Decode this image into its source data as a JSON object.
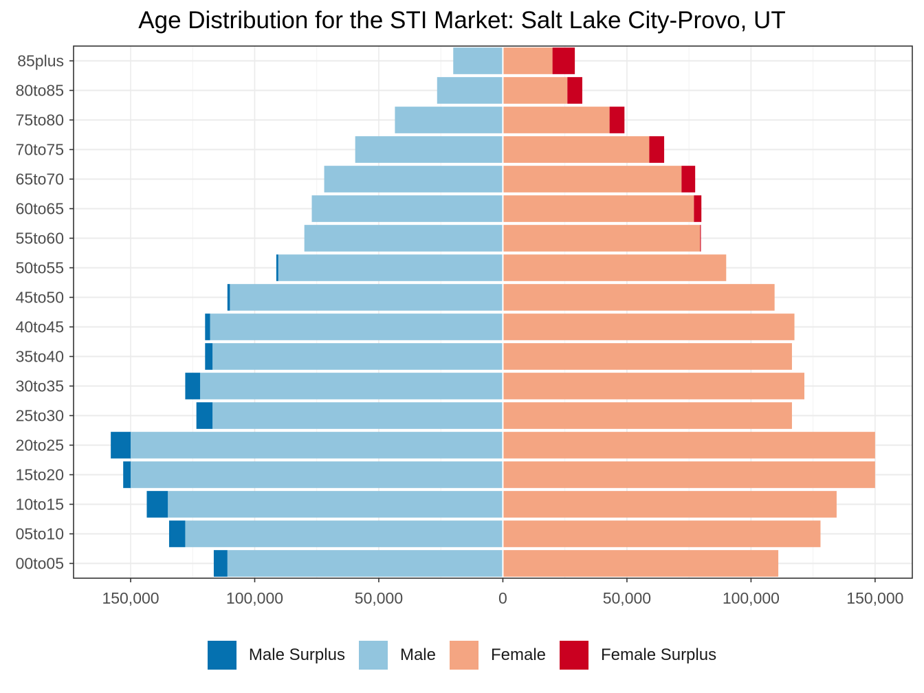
{
  "chart_data": {
    "type": "bar",
    "orientation": "horizontal",
    "title": "Age Distribution for the STI Market: Salt Lake City-Provo, UT",
    "xlabel": "",
    "ylabel": "",
    "categories": [
      "00to05",
      "05to10",
      "10to15",
      "15to20",
      "20to25",
      "25to30",
      "30to35",
      "35to40",
      "40to45",
      "45to50",
      "50to55",
      "55to60",
      "60to65",
      "65to70",
      "70to75",
      "75to80",
      "80to85",
      "85plus"
    ],
    "series": [
      {
        "name": "Male Surplus",
        "color": "#0571b0",
        "values": [
          5500,
          6500,
          8500,
          3000,
          8000,
          6500,
          6000,
          3000,
          2000,
          1000,
          800,
          0,
          0,
          0,
          0,
          0,
          0,
          0
        ]
      },
      {
        "name": "Male",
        "color": "#92c5de",
        "values": [
          111000,
          128000,
          135000,
          150000,
          150000,
          117000,
          122000,
          117000,
          118000,
          110000,
          90500,
          80000,
          77000,
          72000,
          59500,
          43500,
          26500,
          20000
        ]
      },
      {
        "name": "Female",
        "color": "#f4a582",
        "values": [
          111000,
          128000,
          134500,
          150000,
          150000,
          116500,
          121500,
          116500,
          117500,
          109500,
          90000,
          79500,
          77000,
          72000,
          59000,
          43000,
          26000,
          20000
        ]
      },
      {
        "name": "Female Surplus",
        "color": "#ca0020",
        "values": [
          0,
          0,
          0,
          0,
          0,
          0,
          0,
          0,
          0,
          0,
          0,
          300,
          3000,
          5500,
          6000,
          6000,
          6000,
          9000
        ]
      }
    ],
    "xlim": [
      -173000,
      165000
    ],
    "x_ticks": [
      -150000,
      -100000,
      -50000,
      0,
      50000,
      100000,
      150000
    ],
    "x_tick_labels": [
      "150,000",
      "100,000",
      "50,000",
      "0",
      "50,000",
      "100,000",
      "150,000"
    ],
    "grid": true,
    "legend_position": "bottom"
  }
}
